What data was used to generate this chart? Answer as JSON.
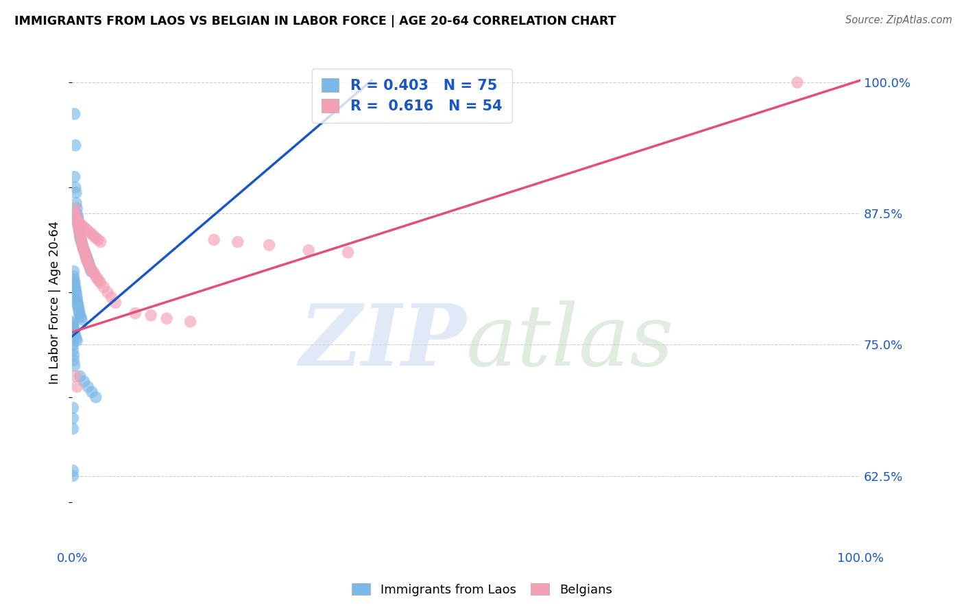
{
  "title": "IMMIGRANTS FROM LAOS VS BELGIAN IN LABOR FORCE | AGE 20-64 CORRELATION CHART",
  "source": "Source: ZipAtlas.com",
  "ylabel": "In Labor Force | Age 20-64",
  "ytick_labels": [
    "62.5%",
    "75.0%",
    "87.5%",
    "100.0%"
  ],
  "ytick_values": [
    0.625,
    0.75,
    0.875,
    1.0
  ],
  "xlim": [
    0.0,
    1.0
  ],
  "ylim": [
    0.555,
    1.025
  ],
  "blue_color": "#7ab8e8",
  "pink_color": "#f4a0b5",
  "blue_line_color": "#1a56c4",
  "pink_line_color": "#e0507a",
  "legend_text_color": "#1a56c4",
  "blue_R": 0.403,
  "blue_N": 75,
  "pink_R": 0.616,
  "pink_N": 54,
  "blue_scatter_x": [
    0.003,
    0.004,
    0.003,
    0.004,
    0.005,
    0.005,
    0.006,
    0.006,
    0.007,
    0.007,
    0.008,
    0.008,
    0.009,
    0.009,
    0.01,
    0.01,
    0.011,
    0.012,
    0.013,
    0.014,
    0.015,
    0.016,
    0.017,
    0.018,
    0.019,
    0.02,
    0.021,
    0.022,
    0.023,
    0.024,
    0.002,
    0.002,
    0.002,
    0.003,
    0.003,
    0.004,
    0.004,
    0.005,
    0.005,
    0.006,
    0.006,
    0.007,
    0.007,
    0.008,
    0.008,
    0.009,
    0.009,
    0.01,
    0.011,
    0.012,
    0.001,
    0.001,
    0.001,
    0.002,
    0.002,
    0.003,
    0.003,
    0.004,
    0.005,
    0.006,
    0.001,
    0.001,
    0.002,
    0.002,
    0.003,
    0.01,
    0.015,
    0.02,
    0.025,
    0.03,
    0.001,
    0.001,
    0.001,
    0.001,
    0.001
  ],
  "blue_scatter_y": [
    0.97,
    0.94,
    0.91,
    0.9,
    0.895,
    0.885,
    0.88,
    0.875,
    0.872,
    0.87,
    0.868,
    0.865,
    0.86,
    0.858,
    0.855,
    0.852,
    0.85,
    0.848,
    0.845,
    0.842,
    0.84,
    0.838,
    0.836,
    0.834,
    0.832,
    0.83,
    0.828,
    0.825,
    0.823,
    0.82,
    0.82,
    0.815,
    0.812,
    0.81,
    0.808,
    0.805,
    0.803,
    0.8,
    0.798,
    0.795,
    0.793,
    0.79,
    0.788,
    0.786,
    0.784,
    0.782,
    0.78,
    0.778,
    0.776,
    0.774,
    0.772,
    0.77,
    0.768,
    0.766,
    0.764,
    0.762,
    0.76,
    0.758,
    0.756,
    0.754,
    0.75,
    0.745,
    0.74,
    0.735,
    0.73,
    0.72,
    0.715,
    0.71,
    0.705,
    0.7,
    0.69,
    0.68,
    0.67,
    0.63,
    0.625
  ],
  "pink_scatter_x": [
    0.003,
    0.004,
    0.005,
    0.006,
    0.007,
    0.008,
    0.009,
    0.01,
    0.011,
    0.012,
    0.013,
    0.014,
    0.015,
    0.016,
    0.017,
    0.018,
    0.019,
    0.02,
    0.022,
    0.024,
    0.026,
    0.028,
    0.03,
    0.032,
    0.034,
    0.036,
    0.04,
    0.045,
    0.05,
    0.055,
    0.08,
    0.1,
    0.12,
    0.15,
    0.18,
    0.21,
    0.25,
    0.3,
    0.35,
    0.92,
    0.005,
    0.007,
    0.009,
    0.012,
    0.015,
    0.018,
    0.021,
    0.024,
    0.027,
    0.03,
    0.033,
    0.036,
    0.004,
    0.006
  ],
  "pink_scatter_y": [
    0.88,
    0.875,
    0.872,
    0.868,
    0.865,
    0.862,
    0.858,
    0.855,
    0.852,
    0.848,
    0.845,
    0.842,
    0.84,
    0.838,
    0.835,
    0.832,
    0.83,
    0.828,
    0.825,
    0.822,
    0.82,
    0.818,
    0.815,
    0.813,
    0.811,
    0.809,
    0.805,
    0.8,
    0.795,
    0.79,
    0.78,
    0.778,
    0.775,
    0.772,
    0.85,
    0.848,
    0.845,
    0.84,
    0.838,
    1.0,
    0.87,
    0.868,
    0.866,
    0.864,
    0.862,
    0.86,
    0.858,
    0.856,
    0.854,
    0.852,
    0.85,
    0.848,
    0.72,
    0.71
  ],
  "blue_line_x": [
    0.0,
    0.38
  ],
  "blue_line_y_start": 0.758,
  "blue_line_y_end": 1.002,
  "pink_line_x": [
    0.0,
    1.0
  ],
  "pink_line_y_start": 0.762,
  "pink_line_y_end": 1.002
}
